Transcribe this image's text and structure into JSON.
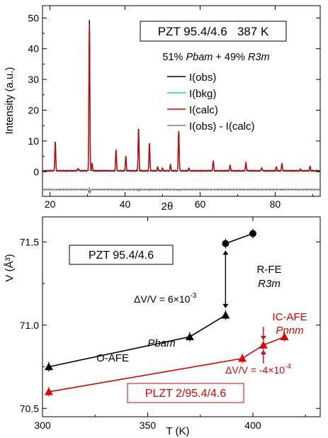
{
  "chart_data": [
    {
      "type": "line",
      "title": "PZT 95.4/4.6   387 K",
      "subtitle": "51% Pbam + 49% R3m",
      "subtitle_parts": [
        "51% ",
        "Pbam",
        " + 49% ",
        "R3m"
      ],
      "xlabel": "2θ",
      "ylabel": "Intensity (a.u.)",
      "xlim": [
        18,
        92
      ],
      "ylim": [
        -8,
        54
      ],
      "xticks": [
        20,
        40,
        60,
        80
      ],
      "yticks": [
        0,
        10,
        20,
        30,
        40,
        50
      ],
      "grid": false,
      "legend": {
        "position": "right",
        "entries": [
          {
            "label": "I(obs)",
            "color": "#000000"
          },
          {
            "label": "I(bkg)",
            "color": "#1ec8e0"
          },
          {
            "label": "I(calc)",
            "color": "#e00000"
          },
          {
            "label": "I(obs) - I(calc)",
            "color": "#808080"
          }
        ]
      },
      "baseline": 0.3,
      "difference_offset": -5.8,
      "peaks": [
        {
          "x": 21.4,
          "y": 9.8
        },
        {
          "x": 27.5,
          "y": 1.1
        },
        {
          "x": 30.5,
          "y": 49.2
        },
        {
          "x": 31.2,
          "y": 2.6
        },
        {
          "x": 37.6,
          "y": 7.2
        },
        {
          "x": 40.2,
          "y": 5.0
        },
        {
          "x": 43.6,
          "y": 13.8
        },
        {
          "x": 46.5,
          "y": 9.1
        },
        {
          "x": 48.7,
          "y": 1.6
        },
        {
          "x": 50.0,
          "y": 1.1
        },
        {
          "x": 52.1,
          "y": 2.3
        },
        {
          "x": 54.3,
          "y": 13.4
        },
        {
          "x": 57.0,
          "y": 1.2
        },
        {
          "x": 63.5,
          "y": 3.6
        },
        {
          "x": 68.0,
          "y": 2.1
        },
        {
          "x": 72.2,
          "y": 2.9
        },
        {
          "x": 76.4,
          "y": 1.3
        },
        {
          "x": 80.3,
          "y": 1.5
        },
        {
          "x": 81.8,
          "y": 2.6
        },
        {
          "x": 86.7,
          "y": 0.9
        },
        {
          "x": 89.3,
          "y": 1.7
        }
      ]
    },
    {
      "type": "line",
      "xlabel": "T (K)",
      "ylabel": "V (Å³)",
      "xlim": [
        300,
        432
      ],
      "ylim": [
        70.45,
        71.65
      ],
      "xticks": [
        300,
        350,
        400
      ],
      "yticks": [
        70.5,
        71.0,
        71.5
      ],
      "grid": false,
      "series": [
        {
          "name": "PZT 95.4/4.6",
          "color": "#000000",
          "marker": "triangle",
          "x": [
            303,
            370,
            387
          ],
          "y": [
            70.75,
            70.93,
            71.06
          ]
        },
        {
          "name": "PZT 95.4/4.6",
          "color": "#000000",
          "marker": "circle",
          "x": [
            387,
            400
          ],
          "y": [
            71.49,
            71.55
          ]
        },
        {
          "name": "PLZT 2/95.4/4.6",
          "color": "#e00000",
          "marker": "triangle",
          "x": [
            303,
            395,
            405,
            415
          ],
          "y": [
            70.6,
            70.8,
            70.88,
            70.93
          ]
        }
      ],
      "annotations": {
        "pzt_box": "PZT 95.4/4.6",
        "plzt_box": "PLZT 2/95.4/4.6",
        "rfe": "R-FE",
        "r3m": "R3m",
        "oafe": "O-AFE",
        "pbam": "Pbam",
        "icafe": "IC-AFE",
        "pnnm": "Pnnm",
        "dv_black_prefix": "ΔV/V = 6×10",
        "dv_black_exp": "-3",
        "dv_red_prefix": "ΔV/V = -4×10",
        "dv_red_exp": "-4"
      }
    }
  ]
}
